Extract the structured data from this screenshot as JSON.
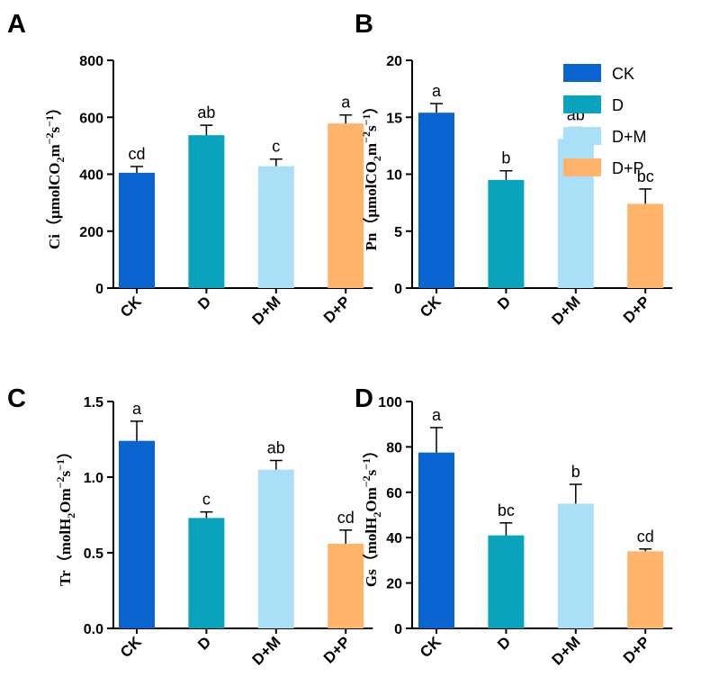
{
  "chart_data": [
    {
      "panel": "A",
      "type": "bar",
      "categories": [
        "CK",
        "D",
        "D+M",
        "D+P"
      ],
      "values": [
        405,
        537,
        428,
        578
      ],
      "errors": [
        22,
        35,
        25,
        30
      ],
      "significance": [
        "cd",
        "ab",
        "c",
        "a"
      ],
      "ylabel": {
        "main": "Ci（μmolCO",
        "sub": "2",
        "rest": "m",
        "sup1": "−2",
        "mid": "s",
        "sup2": "−1",
        "close": "）"
      },
      "ylim": [
        0,
        800
      ],
      "yticks": [
        "0",
        "200",
        "400",
        "600",
        "800"
      ]
    },
    {
      "panel": "B",
      "type": "bar",
      "categories": [
        "CK",
        "D",
        "D+M",
        "D+P"
      ],
      "values": [
        15.4,
        9.5,
        13.1,
        7.4
      ],
      "errors": [
        0.8,
        0.8,
        1.0,
        1.3
      ],
      "significance": [
        "a",
        "b",
        "ab",
        "bc"
      ],
      "ylabel": {
        "main": "Pn（μmolCO",
        "sub": "2",
        "rest": "m",
        "sup1": "−2",
        "mid": "s",
        "sup2": "−1",
        "close": "）"
      },
      "ylim": [
        0,
        20
      ],
      "yticks": [
        "0",
        "5",
        "10",
        "15",
        "20"
      ]
    },
    {
      "panel": "C",
      "type": "bar",
      "categories": [
        "CK",
        "D",
        "D+M",
        "D+P"
      ],
      "values": [
        1.24,
        0.73,
        1.05,
        0.56
      ],
      "errors": [
        0.13,
        0.04,
        0.06,
        0.09
      ],
      "significance": [
        "a",
        "c",
        "ab",
        "cd"
      ],
      "ylabel": {
        "main": "Tr（molH",
        "sub": "2",
        "rest": "Om",
        "sup1": "−2",
        "mid": "s",
        "sup2": "−1",
        "close": "）"
      },
      "ylim": [
        0,
        1.5
      ],
      "yticks": [
        "0.0",
        "0.5",
        "1.0",
        "1.5"
      ]
    },
    {
      "panel": "D",
      "type": "bar",
      "categories": [
        "CK",
        "D",
        "D+M",
        "D+P"
      ],
      "values": [
        77.5,
        41,
        55,
        34
      ],
      "errors": [
        11,
        5.5,
        8.5,
        1
      ],
      "significance": [
        "a",
        "bc",
        "b",
        "cd"
      ],
      "ylabel": {
        "main": "Gs（molH",
        "sub": "2",
        "rest": "Om",
        "sup1": "−2",
        "mid": "s",
        "sup2": "−1",
        "close": "）"
      },
      "ylim": [
        0,
        100
      ],
      "yticks": [
        "0",
        "20",
        "40",
        "60",
        "80",
        "100"
      ]
    }
  ],
  "legend": [
    {
      "label": "CK",
      "color": "#0a64d0"
    },
    {
      "label": "D",
      "color": "#0aa3bd"
    },
    {
      "label": "D+M",
      "color": "#a9dff7"
    },
    {
      "label": "D+P",
      "color": "#ffb36b"
    }
  ]
}
